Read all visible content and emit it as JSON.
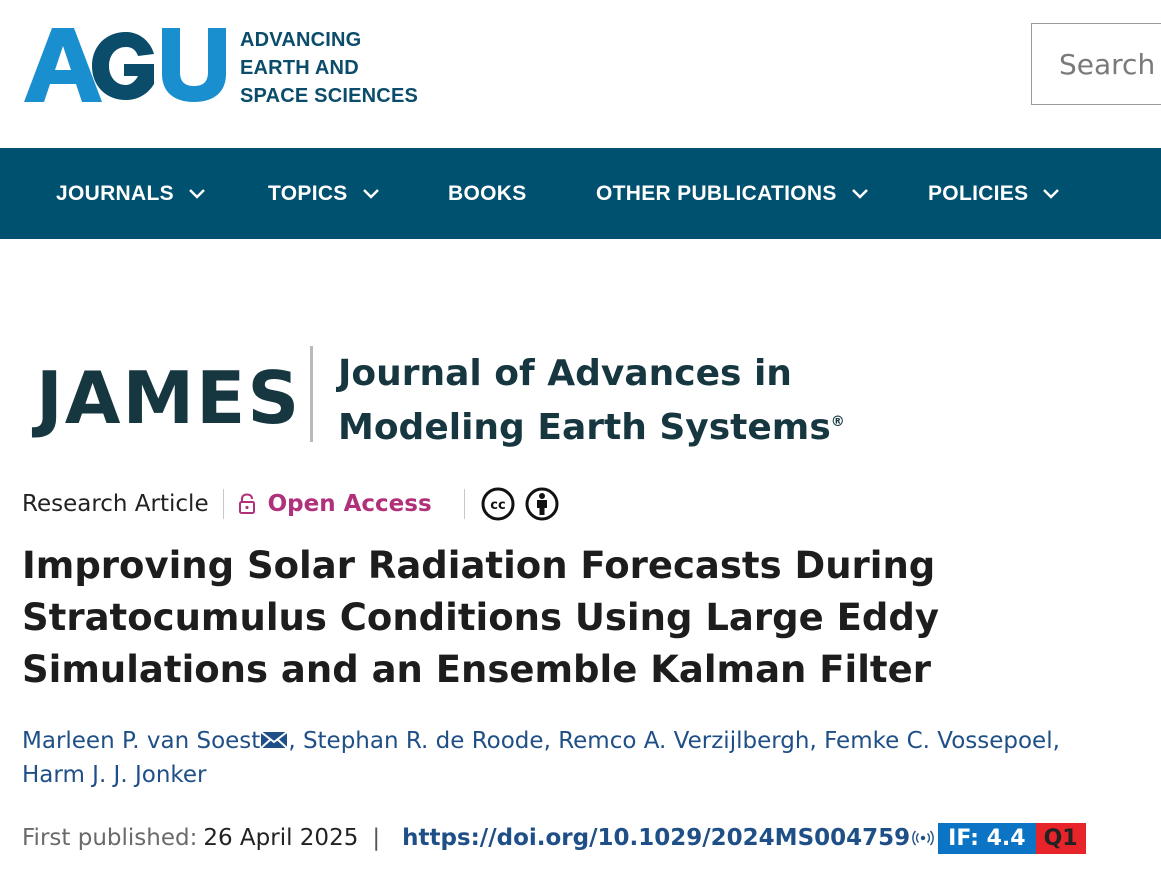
{
  "header": {
    "logo_text_lines": [
      "ADVANCING",
      "EARTH AND",
      "SPACE SCIENCES"
    ],
    "logo_mark": "AGU",
    "search": {
      "placeholder": "Search"
    }
  },
  "nav": {
    "items": [
      {
        "label": "JOURNALS",
        "has_dropdown": true
      },
      {
        "label": "TOPICS",
        "has_dropdown": true
      },
      {
        "label": "BOOKS",
        "has_dropdown": false
      },
      {
        "label": "OTHER PUBLICATIONS",
        "has_dropdown": true
      },
      {
        "label": "POLICIES",
        "has_dropdown": true
      }
    ]
  },
  "journal": {
    "abbrev": "JAMES",
    "title_line1": "Journal of Advances in",
    "title_line2": "Modeling Earth Systems",
    "trademark": "®"
  },
  "article": {
    "type": "Research Article",
    "access": "Open Access",
    "license_icons": [
      "cc-icon",
      "by-attribution-icon"
    ],
    "title": "Improving Solar Radiation Forecasts During Stratocumulus Conditions Using Large Eddy Simulations and an Ensemble Kalman Filter",
    "authors": [
      "Marleen P. van Soest",
      "Stephan R. de Roode",
      "Remco A. Verzijlbergh",
      "Femke C. Vossepoel",
      "Harm J. J. Jonker"
    ],
    "first_published_label": "First published:",
    "first_published_date": "26 April 2025",
    "separator": "|",
    "doi": "https://doi.org/10.1029/2024MS004759",
    "impact_factor": "IF: 4.4",
    "quartile": "Q1"
  },
  "colors": {
    "nav_bg": "#00506f",
    "agu_blue": "#1a8fd0",
    "agu_dark": "#0a4c6a",
    "open_access": "#b0307a",
    "link": "#1f4f87",
    "if_badge": "#0b74c4",
    "q_badge": "#e8242b"
  }
}
